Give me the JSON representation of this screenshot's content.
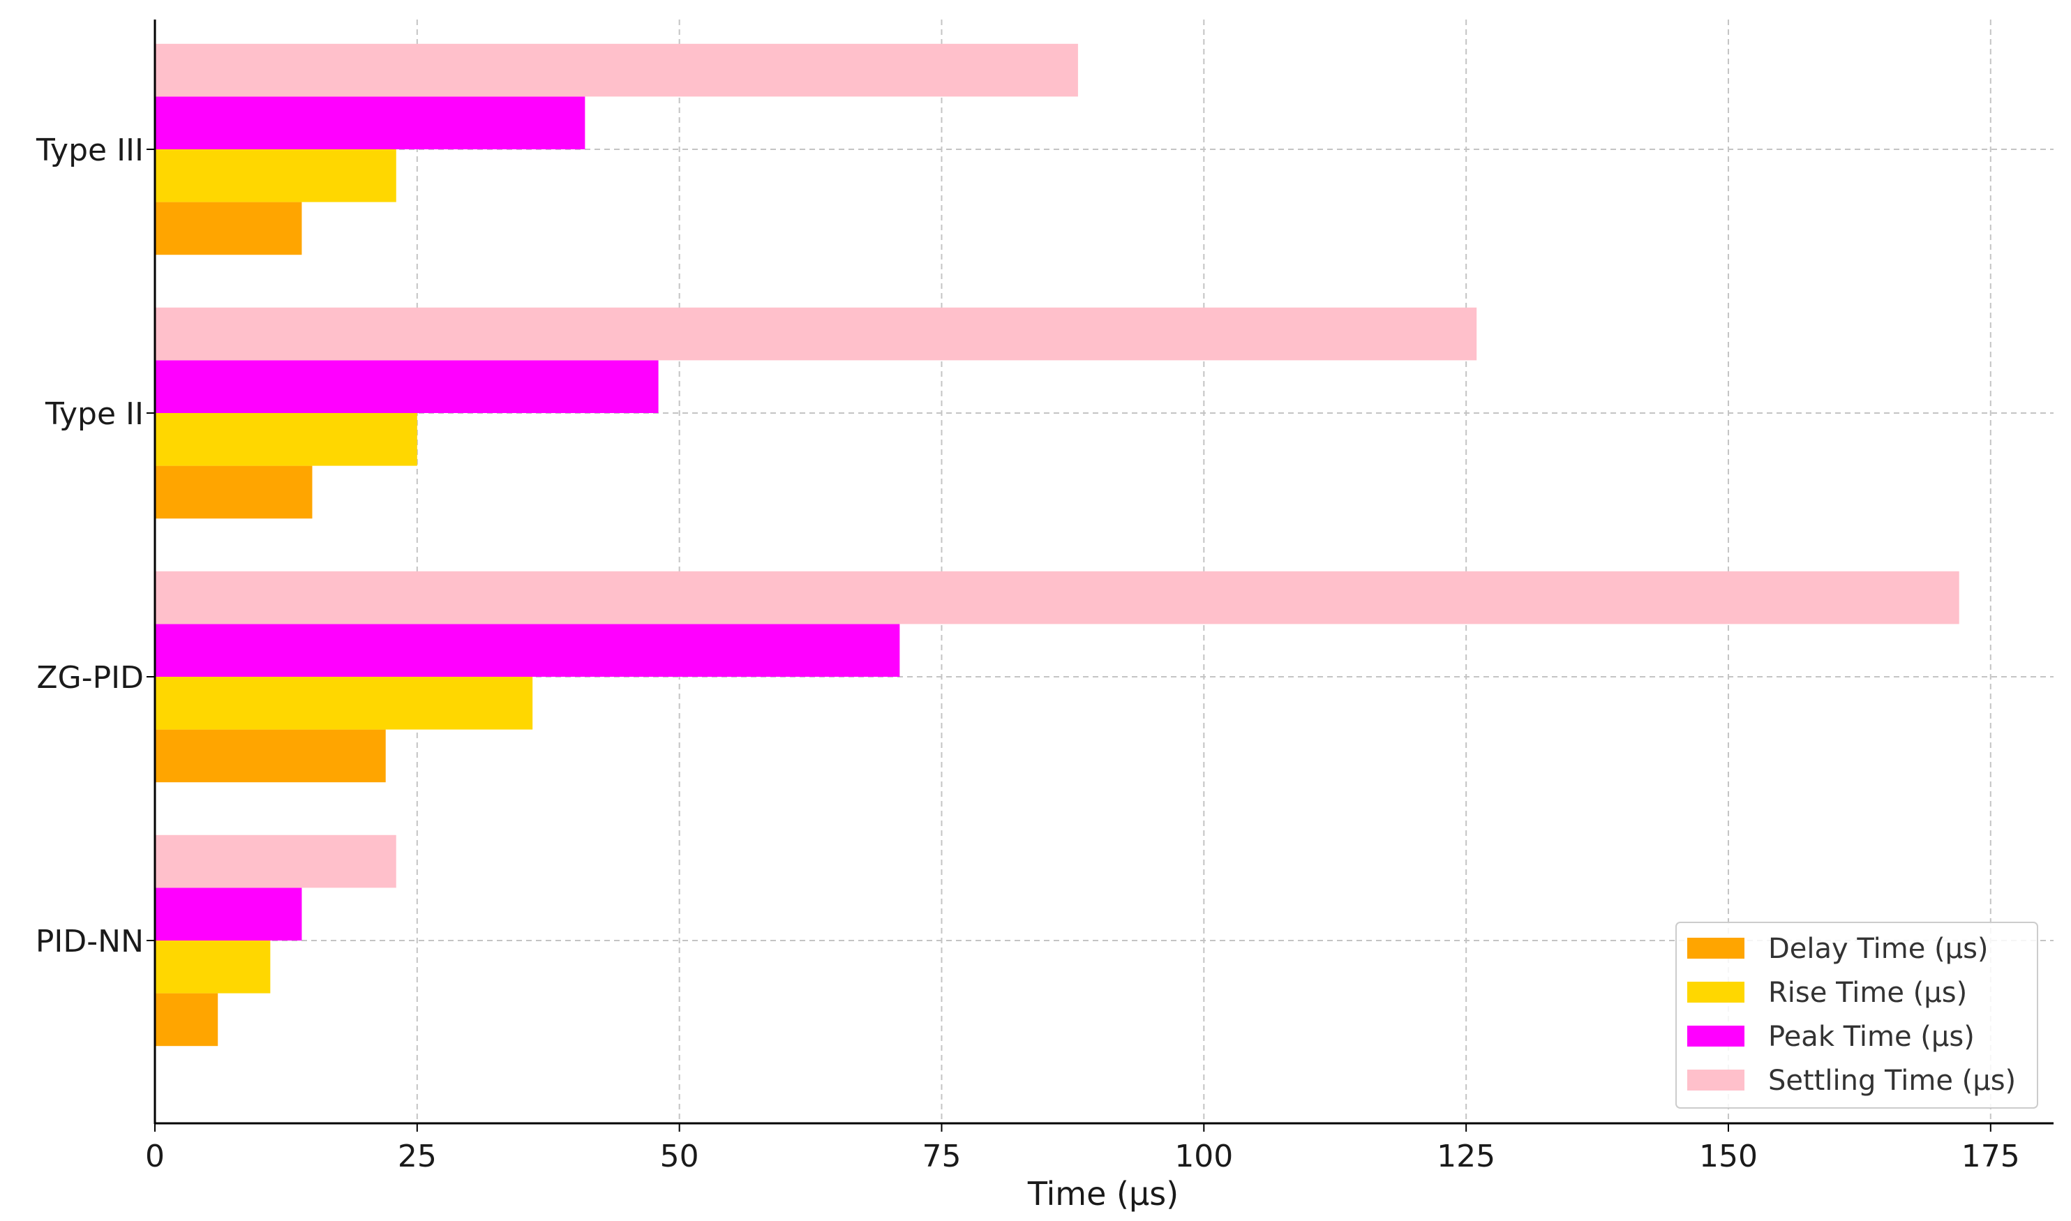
{
  "chart_data": {
    "type": "bar",
    "orientation": "horizontal",
    "categories": [
      "PID-NN",
      "ZG-PID",
      "Type II",
      "Type III"
    ],
    "series": [
      {
        "name": "Delay Time (µs)",
        "values": [
          6,
          22,
          15,
          14
        ],
        "color": "#FFA500"
      },
      {
        "name": "Rise Time (µs)",
        "values": [
          11,
          36,
          25,
          23
        ],
        "color": "#FFD700"
      },
      {
        "name": "Peak Time (µs)",
        "values": [
          14,
          71,
          48,
          41
        ],
        "color": "#FF00FF"
      },
      {
        "name": "Settling Time (µs)",
        "values": [
          23,
          172,
          126,
          88
        ],
        "color": "#FFC0CB"
      }
    ],
    "xlabel": "Time (µs)",
    "ylabel": "",
    "xlim": [
      0,
      181
    ],
    "xticks": [
      0,
      25,
      50,
      75,
      100,
      125,
      150,
      175
    ],
    "grid": true,
    "legend_position": "bottom-right"
  }
}
